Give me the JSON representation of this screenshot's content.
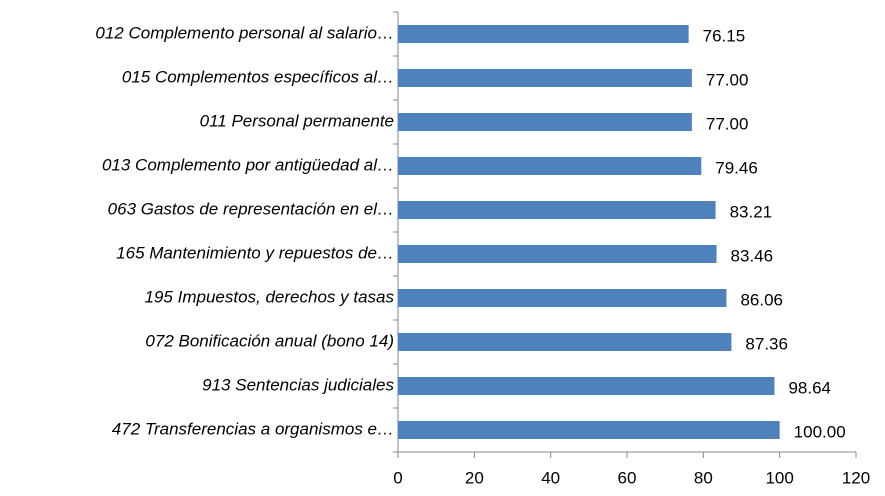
{
  "chart_data": {
    "type": "bar",
    "orientation": "horizontal",
    "categories": [
      "012 Complemento personal al salario…",
      "015 Complementos específicos al…",
      "011 Personal permanente",
      "013 Complemento por antigüedad al…",
      "063 Gastos de representación en el…",
      "165 Mantenimiento y repuestos de…",
      "195 Impuestos, derechos y tasas",
      "072 Bonificación anual (bono 14)",
      "913 Sentencias judiciales",
      "472 Transferencias a organismos e…"
    ],
    "values": [
      76.15,
      77,
      77,
      79.46,
      83.21,
      83.46,
      86.06,
      87.36,
      98.64,
      100
    ],
    "value_labels": [
      "76.15",
      "77.00",
      "77.00",
      "79.46",
      "83.21",
      "83.46",
      "86.06",
      "87.36",
      "98.64",
      "100.00"
    ],
    "color": "#4f81bd",
    "xlim": [
      0,
      120
    ],
    "xticks": [
      0,
      20,
      40,
      60,
      80,
      100,
      120
    ]
  }
}
